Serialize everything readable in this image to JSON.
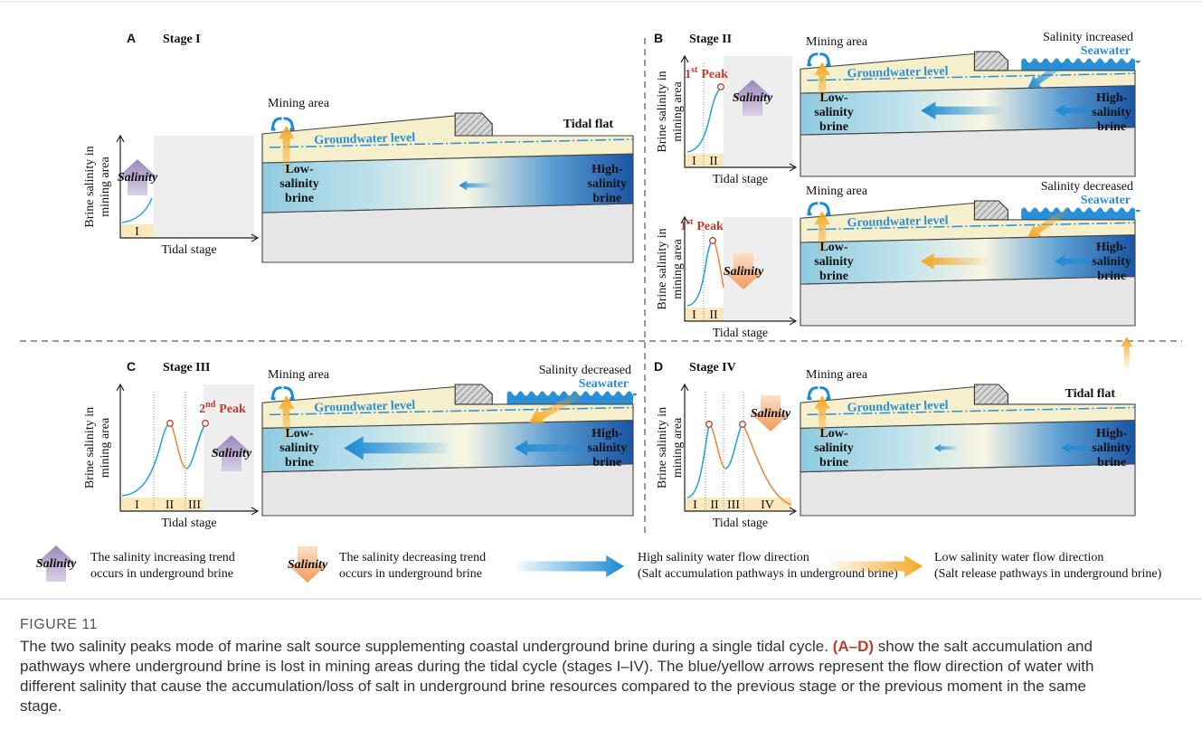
{
  "figure": {
    "panels": [
      {
        "letter": "A",
        "title": "Stage I",
        "y_label": [
          "Brine salinity in",
          "mining area"
        ],
        "x_label": "Tidal stage",
        "stages": [
          "I"
        ],
        "trend": "Salinity",
        "mining_area": "Mining area",
        "groundwater": "Groundwater level",
        "right_label": "Tidal flat",
        "low_brine": [
          "Low-",
          "salinity",
          "brine"
        ],
        "high_brine": [
          "High-",
          "salinity",
          "brine"
        ]
      },
      {
        "letter": "B",
        "title": "Stage II",
        "y_label": [
          "Brine salinity in",
          "mining area"
        ],
        "x_label": "Tidal stage",
        "stages": [
          "I",
          "II"
        ],
        "peak": {
          "ordinal": "1",
          "suffix": "st",
          "word": "Peak"
        },
        "trend": "Salinity",
        "mining_area": "Mining area",
        "groundwater": "Groundwater level",
        "salinity_change": "Salinity increased",
        "seawater": "Seawater",
        "low_brine": [
          "Low-",
          "salinity",
          "brine"
        ],
        "high_brine": [
          "High-",
          "salinity",
          "brine"
        ]
      },
      {
        "y_label": [
          "Brine salinity in",
          "mining area"
        ],
        "x_label": "Tidal stage",
        "stages": [
          "I",
          "II"
        ],
        "peak": {
          "ordinal": "1",
          "suffix": "st",
          "word": "Peak"
        },
        "trend": "Salinity",
        "mining_area": "Mining area",
        "groundwater": "Groundwater level",
        "salinity_change": "Salinity decreased",
        "seawater": "Seawater",
        "low_brine": [
          "Low-",
          "salinity",
          "brine"
        ],
        "high_brine": [
          "High-",
          "salinity",
          "brine"
        ]
      },
      {
        "letter": "C",
        "title": "Stage III",
        "y_label": [
          "Brine salinity in",
          "mining area"
        ],
        "x_label": "Tidal stage",
        "stages": [
          "I",
          "II",
          "III"
        ],
        "peak": {
          "ordinal": "2",
          "suffix": "nd",
          "word": "Peak"
        },
        "trend": "Salinity",
        "mining_area": "Mining area",
        "groundwater": "Groundwater level",
        "salinity_change": "Salinity decreased",
        "seawater": "Seawater",
        "low_brine": [
          "Low-",
          "salinity",
          "brine"
        ],
        "high_brine": [
          "High-",
          "salinity",
          "brine"
        ]
      },
      {
        "letter": "D",
        "title": "Stage IV",
        "y_label": [
          "Brine salinity in",
          "mining area"
        ],
        "x_label": "Tidal stage",
        "stages": [
          "I",
          "II",
          "III",
          "IV"
        ],
        "trend": "Salinity",
        "mining_area": "Mining area",
        "groundwater": "Groundwater level",
        "right_label": "Tidal flat",
        "low_brine": [
          "Low-",
          "salinity",
          "brine"
        ],
        "high_brine": [
          "High-",
          "salinity",
          "brine"
        ]
      }
    ]
  },
  "legend": [
    {
      "icon": "Salinity",
      "lines": [
        "The salinity increasing trend",
        "occurs in underground brine"
      ]
    },
    {
      "icon": "Salinity",
      "lines": [
        "The salinity decreasing trend",
        "occurs in underground brine"
      ]
    },
    {
      "lines": [
        "High salinity water flow direction",
        "(Salt accumulation pathways in underground brine)"
      ]
    },
    {
      "lines": [
        "Low salinity water flow direction",
        "(Salt release pathways in underground brine)"
      ]
    }
  ],
  "caption": {
    "label": "FIGURE 11",
    "before": "The two salinity peaks mode of marine salt source supplementing coastal underground brine during a single tidal cycle. ",
    "bold": "(A–D)",
    "after": "show the salt accumulation and pathways where underground brine is lost in mining areas during the tidal cycle (stages I–IV). The blue/yellow arrows represent the flow direction of water with different salinity that cause the accumulation/loss of salt in underground brine resources compared to the previous stage or the previous moment in the same stage."
  }
}
